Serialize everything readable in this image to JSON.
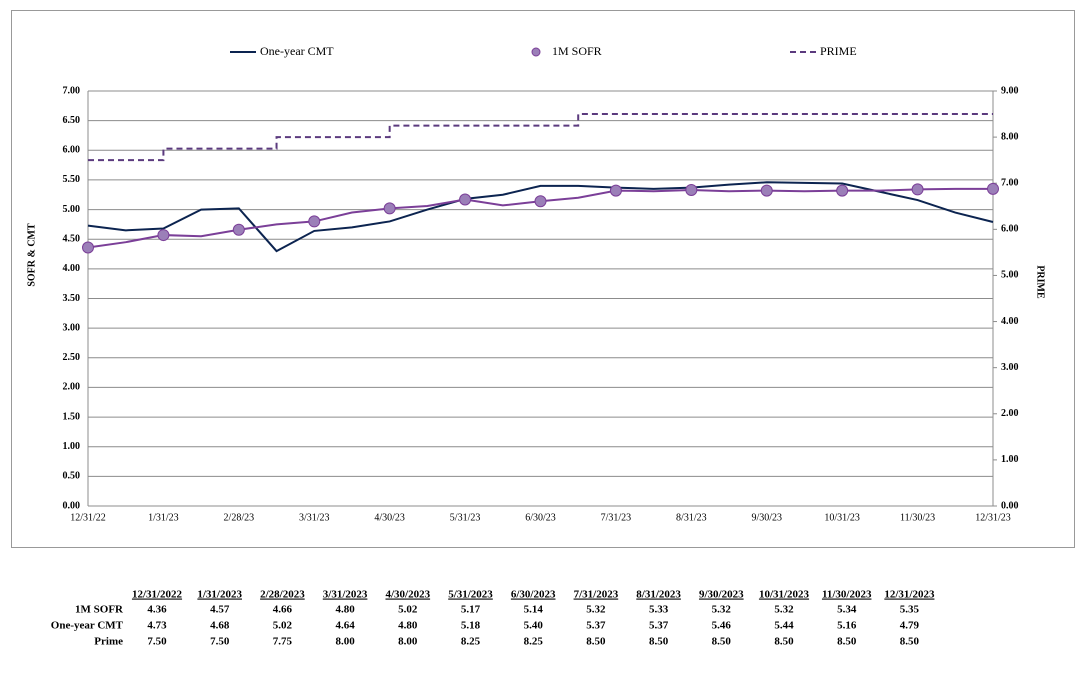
{
  "chart_data": {
    "type": "line",
    "y_label": "SOFR & CMT",
    "y2_label": "PRIME",
    "categories": [
      "12/31/22",
      null,
      "1/31/23",
      null,
      "2/28/23",
      null,
      "3/31/23",
      null,
      "4/30/23",
      null,
      "5/31/23",
      null,
      "6/30/23",
      null,
      "7/31/23",
      null,
      "8/31/23",
      null,
      "9/30/23",
      null,
      "10/31/23",
      null,
      "11/30/23",
      null,
      "12/31/23"
    ],
    "series": [
      {
        "name": "One-year CMT",
        "color": "#0c2450",
        "values": [
          4.73,
          4.65,
          4.68,
          5.0,
          5.02,
          4.3,
          4.64,
          4.7,
          4.8,
          5.0,
          5.18,
          5.25,
          5.4,
          5.4,
          5.37,
          5.35,
          5.37,
          5.42,
          5.46,
          5.45,
          5.44,
          5.3,
          5.16,
          4.95,
          4.79
        ]
      },
      {
        "name": "1M SOFR",
        "color": "#7b3f98",
        "marker": "circle",
        "marker_color": "#9b7fb8",
        "values": [
          4.36,
          4.45,
          4.57,
          4.55,
          4.66,
          4.75,
          4.8,
          4.95,
          5.02,
          5.06,
          5.17,
          5.07,
          5.14,
          5.2,
          5.32,
          5.31,
          5.33,
          5.31,
          5.32,
          5.31,
          5.32,
          5.32,
          5.34,
          5.35,
          5.35
        ]
      },
      {
        "name": "PRIME",
        "color": "#5b3a7e",
        "dash": true,
        "axis": "y2",
        "drawstyle": "steps-pre",
        "values": [
          7.5,
          7.5,
          7.5,
          7.75,
          7.75,
          7.75,
          8.0,
          8.0,
          8.0,
          8.25,
          8.25,
          8.25,
          8.25,
          8.25,
          8.5,
          8.5,
          8.5,
          8.5,
          8.5,
          8.5,
          8.5,
          8.5,
          8.5,
          8.5,
          8.5
        ]
      }
    ],
    "ylim": [
      0,
      7
    ],
    "yticks": [
      {
        "value": 0,
        "label": "0.00"
      },
      {
        "value": 0.5,
        "label": "0.50"
      },
      {
        "value": 1,
        "label": "1.00"
      },
      {
        "value": 1.5,
        "label": "1.50"
      },
      {
        "value": 2,
        "label": "2.00"
      },
      {
        "value": 2.5,
        "label": "2.50"
      },
      {
        "value": 3,
        "label": "3.00"
      },
      {
        "value": 3.5,
        "label": "3.50"
      },
      {
        "value": 4,
        "label": "4.00"
      },
      {
        "value": 4.5,
        "label": "4.50"
      },
      {
        "value": 5,
        "label": "5.00"
      },
      {
        "value": 5.5,
        "label": "5.50"
      },
      {
        "value": 6,
        "label": "6.00"
      },
      {
        "value": 6.5,
        "label": "6.50"
      },
      {
        "value": 7,
        "label": "7.00"
      }
    ],
    "y2lim": [
      0,
      9
    ],
    "y2ticks": [
      {
        "value": 0,
        "label": "0.00"
      },
      {
        "value": 1,
        "label": "1.00"
      },
      {
        "value": 2,
        "label": "2.00"
      },
      {
        "value": 3,
        "label": "3.00"
      },
      {
        "value": 4,
        "label": "4.00"
      },
      {
        "value": 5,
        "label": "5.00"
      },
      {
        "value": 6,
        "label": "6.00"
      },
      {
        "value": 7,
        "label": "7.00"
      },
      {
        "value": 8,
        "label": "8.00"
      },
      {
        "value": 9,
        "label": "9.00"
      }
    ],
    "grid": true,
    "legend": "top"
  },
  "table": {
    "columns": [
      "12/31/2022",
      "1/31/2023",
      "2/28/2023",
      "3/31/2023",
      "4/30/2023",
      "5/31/2023",
      "6/30/2023",
      "7/31/2023",
      "8/31/2023",
      "9/30/2023",
      "10/31/2023",
      "11/30/2023",
      "12/31/2023"
    ],
    "rows": [
      {
        "label": "1M SOFR",
        "color": "#7b3f98",
        "values": [
          "4.36",
          "4.57",
          "4.66",
          "4.80",
          "5.02",
          "5.17",
          "5.14",
          "5.32",
          "5.33",
          "5.32",
          "5.32",
          "5.34",
          "5.35"
        ]
      },
      {
        "label": "One-year CMT",
        "color": "#0c2450",
        "values": [
          "4.73",
          "4.68",
          "5.02",
          "4.64",
          "4.80",
          "5.18",
          "5.40",
          "5.37",
          "5.37",
          "5.46",
          "5.44",
          "5.16",
          "4.79"
        ]
      },
      {
        "label": "Prime",
        "color": "#7b3f98",
        "values": [
          "7.50",
          "7.50",
          "7.75",
          "8.00",
          "8.00",
          "8.25",
          "8.25",
          "8.50",
          "8.50",
          "8.50",
          "8.50",
          "8.50",
          "8.50"
        ]
      }
    ]
  }
}
